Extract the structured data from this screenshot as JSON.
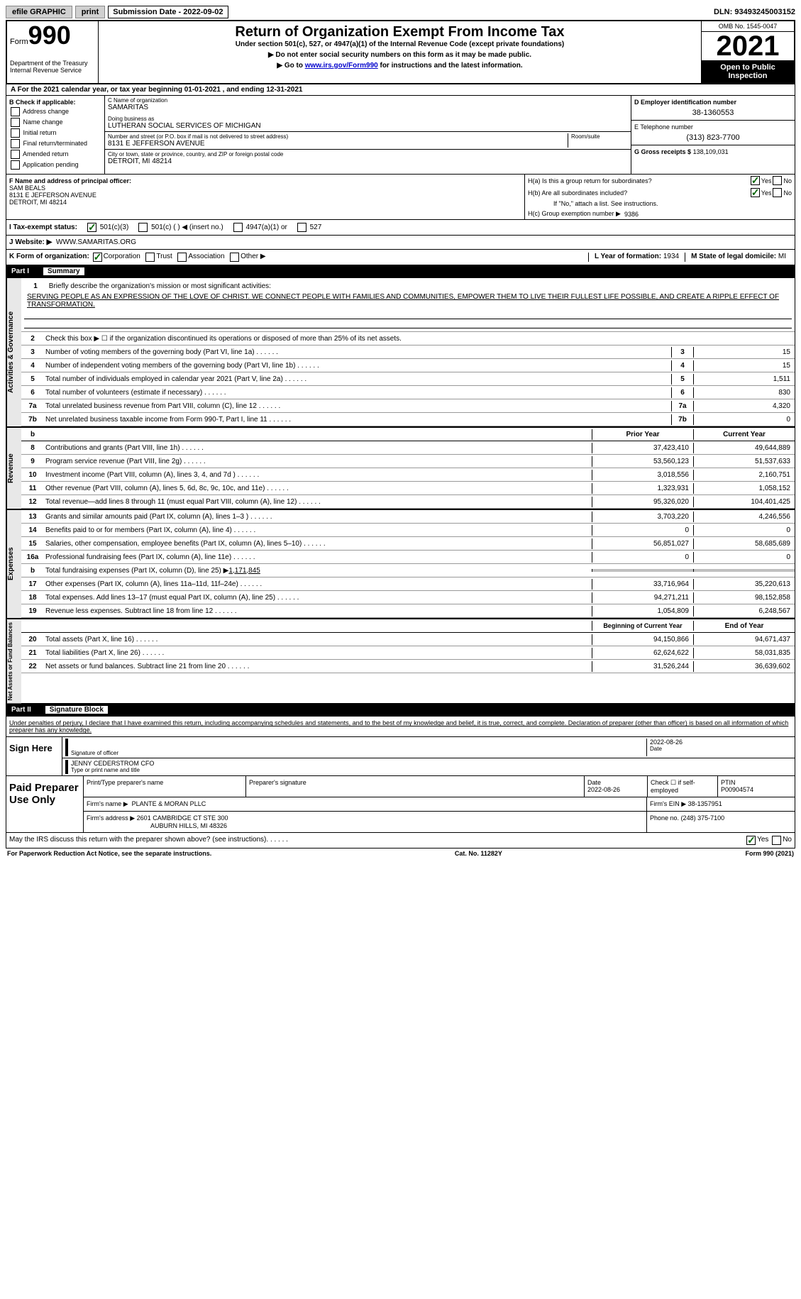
{
  "header": {
    "efile": "efile GRAPHIC",
    "print": "print",
    "submission": "Submission Date - 2022-09-02",
    "dln": "DLN: 93493245003152"
  },
  "form": {
    "form_label": "Form",
    "number": "990",
    "title": "Return of Organization Exempt From Income Tax",
    "subtitle": "Under section 501(c), 527, or 4947(a)(1) of the Internal Revenue Code (except private foundations)",
    "ssn_note": "▶ Do not enter social security numbers on this form as it may be made public.",
    "go_to": "▶ Go to ",
    "link": "www.irs.gov/Form990",
    "link_suffix": " for instructions and the latest information.",
    "dept": "Department of the Treasury",
    "irs": "Internal Revenue Service",
    "omb": "OMB No. 1545-0047",
    "year": "2021",
    "inspection": "Open to Public Inspection"
  },
  "section_a": "A For the 2021 calendar year, or tax year beginning 01-01-2021     , and ending 12-31-2021",
  "section_b": {
    "label": "B Check if applicable:",
    "items": [
      "Address change",
      "Name change",
      "Initial return",
      "Final return/terminated",
      "Amended return",
      "Application pending"
    ]
  },
  "section_c": {
    "name_label": "C Name of organization",
    "name": "SAMARITAS",
    "dba_label": "Doing business as",
    "dba": "LUTHERAN SOCIAL SERVICES OF MICHIGAN",
    "addr_label": "Number and street (or P.O. box if mail is not delivered to street address)",
    "room_label": "Room/suite",
    "addr": "8131 E JEFFERSON AVENUE",
    "city_label": "City or town, state or province, country, and ZIP or foreign postal code",
    "city": "DETROIT, MI  48214"
  },
  "section_d": {
    "ein_label": "D Employer identification number",
    "ein": "38-1360553",
    "phone_label": "E Telephone number",
    "phone": "(313) 823-7700",
    "receipts_label": "G Gross receipts $",
    "receipts": "138,109,031"
  },
  "officer": {
    "label": "F Name and address of principal officer:",
    "name": "SAM BEALS",
    "addr": "8131 E JEFFERSON AVENUE",
    "city": "DETROIT, MI  48214"
  },
  "section_h": {
    "ha": "H(a)  Is this a group return for subordinates?",
    "hb": "H(b)  Are all subordinates included?",
    "hb_note": "If \"No,\" attach a list. See instructions.",
    "hc": "H(c)  Group exemption number ▶",
    "hc_val": "9386",
    "yes": "Yes",
    "no": "No"
  },
  "tax_status": {
    "label": "I   Tax-exempt status:",
    "opt1": "501(c)(3)",
    "opt2": "501(c) (    ) ◀ (insert no.)",
    "opt3": "4947(a)(1) or",
    "opt4": "527"
  },
  "website": {
    "label": "J   Website: ▶",
    "value": "WWW.SAMARITAS.ORG"
  },
  "form_org": {
    "label": "K Form of organization:",
    "corp": "Corporation",
    "trust": "Trust",
    "assoc": "Association",
    "other": "Other ▶",
    "year_label": "L Year of formation:",
    "year": "1934",
    "state_label": "M State of legal domicile:",
    "state": "MI"
  },
  "part1": {
    "title": "Part I",
    "name": "Summary"
  },
  "governance": {
    "label": "Activities & Governance",
    "q1": "Briefly describe the organization's mission or most significant activities:",
    "mission": "SERVING PEOPLE AS AN EXPRESSION OF THE LOVE OF CHRIST. WE CONNECT PEOPLE WITH FAMILIES AND COMMUNITIES, EMPOWER THEM TO LIVE THEIR FULLEST LIFE POSSIBLE, AND CREATE A RIPPLE EFFECT OF TRANSFORMATION.",
    "q2": "Check this box ▶ ☐  if the organization discontinued its operations or disposed of more than 25% of its net assets.",
    "rows": [
      {
        "n": "3",
        "d": "Number of voting members of the governing body (Part VI, line 1a)",
        "v": "15"
      },
      {
        "n": "4",
        "d": "Number of independent voting members of the governing body (Part VI, line 1b)",
        "v": "15"
      },
      {
        "n": "5",
        "d": "Total number of individuals employed in calendar year 2021 (Part V, line 2a)",
        "v": "1,511"
      },
      {
        "n": "6",
        "d": "Total number of volunteers (estimate if necessary)",
        "v": "830"
      },
      {
        "n": "7a",
        "d": "Total unrelated business revenue from Part VIII, column (C), line 12",
        "v": "4,320"
      },
      {
        "n": "7b",
        "d": "Net unrelated business taxable income from Form 990-T, Part I, line 11",
        "v": "0"
      }
    ]
  },
  "revenue": {
    "label": "Revenue",
    "prior_h": "Prior Year",
    "current_h": "Current Year",
    "rows": [
      {
        "n": "8",
        "d": "Contributions and grants (Part VIII, line 1h)",
        "p": "37,423,410",
        "c": "49,644,889"
      },
      {
        "n": "9",
        "d": "Program service revenue (Part VIII, line 2g)",
        "p": "53,560,123",
        "c": "51,537,633"
      },
      {
        "n": "10",
        "d": "Investment income (Part VIII, column (A), lines 3, 4, and 7d )",
        "p": "3,018,556",
        "c": "2,160,751"
      },
      {
        "n": "11",
        "d": "Other revenue (Part VIII, column (A), lines 5, 6d, 8c, 9c, 10c, and 11e)",
        "p": "1,323,931",
        "c": "1,058,152"
      },
      {
        "n": "12",
        "d": "Total revenue—add lines 8 through 11 (must equal Part VIII, column (A), line 12)",
        "p": "95,326,020",
        "c": "104,401,425"
      }
    ]
  },
  "expenses": {
    "label": "Expenses",
    "rows": [
      {
        "n": "13",
        "d": "Grants and similar amounts paid (Part IX, column (A), lines 1–3 )",
        "p": "3,703,220",
        "c": "4,246,556"
      },
      {
        "n": "14",
        "d": "Benefits paid to or for members (Part IX, column (A), line 4)",
        "p": "0",
        "c": "0"
      },
      {
        "n": "15",
        "d": "Salaries, other compensation, employee benefits (Part IX, column (A), lines 5–10)",
        "p": "56,851,027",
        "c": "58,685,689"
      },
      {
        "n": "16a",
        "d": "Professional fundraising fees (Part IX, column (A), line 11e)",
        "p": "0",
        "c": "0"
      }
    ],
    "row_b": {
      "n": "b",
      "d": "Total fundraising expenses (Part IX, column (D), line 25) ▶",
      "v": "1,171,845"
    },
    "rows2": [
      {
        "n": "17",
        "d": "Other expenses (Part IX, column (A), lines 11a–11d, 11f–24e)",
        "p": "33,716,964",
        "c": "35,220,613"
      },
      {
        "n": "18",
        "d": "Total expenses. Add lines 13–17 (must equal Part IX, column (A), line 25)",
        "p": "94,271,211",
        "c": "98,152,858"
      },
      {
        "n": "19",
        "d": "Revenue less expenses. Subtract line 18 from line 12",
        "p": "1,054,809",
        "c": "6,248,567"
      }
    ]
  },
  "netassets": {
    "label": "Net Assets or Fund Balances",
    "begin_h": "Beginning of Current Year",
    "end_h": "End of Year",
    "rows": [
      {
        "n": "20",
        "d": "Total assets (Part X, line 16)",
        "p": "94,150,866",
        "c": "94,671,437"
      },
      {
        "n": "21",
        "d": "Total liabilities (Part X, line 26)",
        "p": "62,624,622",
        "c": "58,031,835"
      },
      {
        "n": "22",
        "d": "Net assets or fund balances. Subtract line 21 from line 20",
        "p": "31,526,244",
        "c": "36,639,602"
      }
    ]
  },
  "part2": {
    "title": "Part II",
    "name": "Signature Block",
    "penalties": "Under penalties of perjury, I declare that I have examined this return, including accompanying schedules and statements, and to the best of my knowledge and belief, it is true, correct, and complete. Declaration of preparer (other than officer) is based on all information of which preparer has any knowledge."
  },
  "sign": {
    "label": "Sign Here",
    "sig_label": "Signature of officer",
    "date_label": "Date",
    "date": "2022-08-26",
    "name": "JENNY CEDERSTROM  CFO",
    "name_label": "Type or print name and title"
  },
  "preparer": {
    "label": "Paid Preparer Use Only",
    "name_h": "Print/Type preparer's name",
    "sig_h": "Preparer's signature",
    "date_h": "Date",
    "date": "2022-08-26",
    "check_h": "Check ☐ if self-employed",
    "ptin_h": "PTIN",
    "ptin": "P00904574",
    "firm_name_h": "Firm's name      ▶",
    "firm_name": "PLANTE & MORAN PLLC",
    "firm_ein_h": "Firm's EIN ▶",
    "firm_ein": "38-1357951",
    "firm_addr_h": "Firm's address ▶",
    "firm_addr": "2601 CAMBRIDGE CT STE 300",
    "firm_city": "AUBURN HILLS, MI  48326",
    "phone_h": "Phone no.",
    "phone": "(248) 375-7100"
  },
  "discuss": "May the IRS discuss this return with the preparer shown above? (see instructions)",
  "footer": {
    "pra": "For Paperwork Reduction Act Notice, see the separate instructions.",
    "cat": "Cat. No. 11282Y",
    "form": "Form 990 (2021)"
  }
}
